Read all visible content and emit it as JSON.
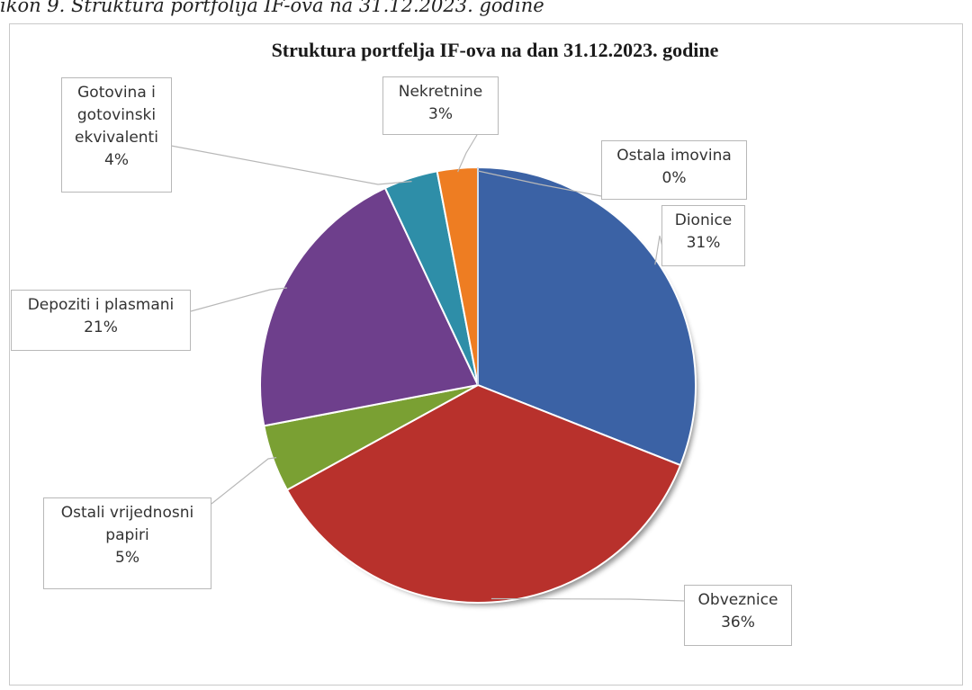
{
  "caption": "ikon 9. Struktura portfolija IF-ova na 31.12.2023. godine",
  "chart_data": {
    "type": "pie",
    "title": "Struktura portfelja IF-ova na dan 31.12.2023. godine",
    "slices": [
      {
        "label": "Dionice",
        "value": 31,
        "display": "31%",
        "color": "#3B62A5"
      },
      {
        "label": "Obveznice",
        "value": 36,
        "display": "36%",
        "color": "#B8312C"
      },
      {
        "label": "Ostali vrijednosni papiri",
        "value": 5,
        "display": "5%",
        "color": "#7AA033"
      },
      {
        "label": "Depoziti i plasmani",
        "value": 21,
        "display": "21%",
        "color": "#6E3F8C"
      },
      {
        "label": "Gotovina i gotovinski ekvivalenti",
        "value": 4,
        "display": "4%",
        "color": "#2E8EA8"
      },
      {
        "label": "Nekretnine",
        "value": 3,
        "display": "3%",
        "color": "#EE7D22"
      },
      {
        "label": "Ostala imovina",
        "value": 0,
        "display": "0%",
        "color": "#9CB8DE"
      }
    ],
    "legend": "none"
  }
}
